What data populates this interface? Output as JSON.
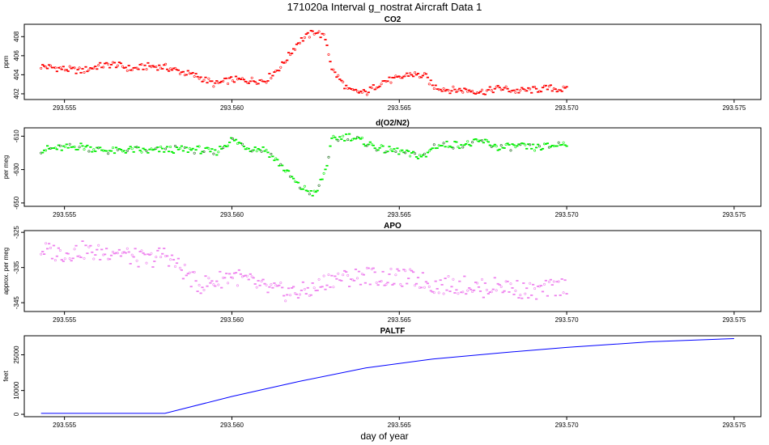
{
  "figure": {
    "title": "171020a   Interval g_nostrat Aircraft Data 1",
    "xlabel": "day of year"
  },
  "chart_data": [
    {
      "type": "scatter",
      "title": "CO2",
      "ylabel": "ppm",
      "color": "#ff0000",
      "xlim": [
        293.5538,
        293.5758
      ],
      "ylim": [
        401.4,
        409.3
      ],
      "xticks": [
        293.555,
        293.56,
        293.565,
        293.57,
        293.575
      ],
      "xtick_labels": [
        "293.555",
        "293.560",
        "293.565",
        "293.570",
        "293.575"
      ],
      "yticks": [
        402,
        404,
        406,
        408
      ],
      "ytick_labels": [
        "402",
        "404",
        "406",
        "408"
      ],
      "series": [
        {
          "name": "CO2",
          "x": [
            293.5543,
            293.555,
            293.5555,
            293.556,
            293.5565,
            293.557,
            293.5575,
            293.558,
            293.559,
            293.5595,
            293.56,
            293.5605,
            293.561,
            293.5615,
            293.562,
            293.5625,
            293.5628,
            293.563,
            293.5635,
            293.564,
            293.5645,
            293.565,
            293.5653,
            293.5658,
            293.566,
            293.5665,
            293.567,
            293.5675,
            293.568,
            293.5685,
            293.569,
            293.5695,
            293.57
          ],
          "y": [
            404.9,
            404.6,
            404.4,
            404.9,
            405.1,
            404.6,
            404.9,
            404.8,
            403.8,
            403.0,
            403.5,
            403.4,
            403.4,
            405.0,
            407.5,
            408.6,
            407.8,
            404.5,
            402.3,
            402.1,
            403.3,
            403.6,
            404.1,
            403.8,
            402.8,
            402.4,
            402.4,
            402.2,
            402.6,
            402.3,
            402.4,
            402.6,
            402.4
          ]
        }
      ]
    },
    {
      "type": "scatter",
      "title": "d(O2/N2)",
      "ylabel": "per meg",
      "color": "#00ee00",
      "xlim": [
        293.5538,
        293.5758
      ],
      "ylim": [
        -652,
        -605
      ],
      "xticks": [
        293.555,
        293.56,
        293.565,
        293.57,
        293.575
      ],
      "xtick_labels": [
        "293.555",
        "293.560",
        "293.565",
        "293.570",
        "293.575"
      ],
      "yticks": [
        -610,
        -630,
        -650
      ],
      "ytick_labels": [
        "-610",
        "-630",
        "-650"
      ],
      "series": [
        {
          "name": "d(O2/N2)",
          "x": [
            293.5543,
            293.555,
            293.5555,
            293.556,
            293.5565,
            293.557,
            293.5575,
            293.558,
            293.559,
            293.5595,
            293.56,
            293.5605,
            293.561,
            293.5615,
            293.562,
            293.5625,
            293.5628,
            293.563,
            293.5635,
            293.564,
            293.5645,
            293.565,
            293.5653,
            293.5658,
            293.566,
            293.5665,
            293.567,
            293.5675,
            293.568,
            293.5685,
            293.569,
            293.5695,
            293.57
          ],
          "y": [
            -618,
            -617,
            -616,
            -618,
            -619,
            -618,
            -619,
            -618,
            -618,
            -620,
            -612,
            -617,
            -618,
            -628,
            -640,
            -645,
            -630,
            -612,
            -610,
            -614,
            -618,
            -619,
            -621,
            -622,
            -616,
            -615,
            -615,
            -613,
            -617,
            -616,
            -617,
            -616,
            -614
          ]
        }
      ]
    },
    {
      "type": "scatter",
      "title": "APO",
      "ylabel": "approx. per meg",
      "color": "#ee82ee",
      "xlim": [
        293.5538,
        293.5758
      ],
      "ylim": [
        -347.5,
        -324.5
      ],
      "xticks": [
        293.555,
        293.56,
        293.565,
        293.57,
        293.575
      ],
      "xtick_labels": [
        "293.555",
        "293.560",
        "293.565",
        "293.570",
        "293.575"
      ],
      "yticks": [
        -325,
        -335,
        -345
      ],
      "ytick_labels": [
        "-325",
        "-335",
        "-345"
      ],
      "series": [
        {
          "name": "APO",
          "x": [
            293.5543,
            293.555,
            293.5555,
            293.556,
            293.5565,
            293.557,
            293.5575,
            293.558,
            293.559,
            293.5595,
            293.56,
            293.5605,
            293.561,
            293.5615,
            293.562,
            293.5625,
            293.5628,
            293.563,
            293.5635,
            293.564,
            293.5645,
            293.565,
            293.5653,
            293.5658,
            293.566,
            293.5665,
            293.567,
            293.5675,
            293.568,
            293.5685,
            293.569,
            293.5695,
            293.57
          ],
          "y": [
            -330,
            -331,
            -330,
            -331,
            -330,
            -332,
            -333,
            -331,
            -340,
            -339,
            -337,
            -339,
            -341,
            -342,
            -342,
            -341,
            -339,
            -338,
            -338,
            -337,
            -338,
            -338,
            -338,
            -339,
            -340,
            -340,
            -340,
            -341,
            -340,
            -341,
            -342,
            -341,
            -340
          ]
        }
      ]
    },
    {
      "type": "line",
      "title": "PALTF",
      "ylabel": "feet",
      "color": "#0000ff",
      "xlim": [
        293.5538,
        293.5758
      ],
      "ylim": [
        -1000,
        33000
      ],
      "xticks": [
        293.555,
        293.56,
        293.565,
        293.57,
        293.575
      ],
      "xtick_labels": [
        "293.555",
        "293.560",
        "293.565",
        "293.570",
        "293.575"
      ],
      "yticks": [
        0,
        10000,
        25000
      ],
      "ytick_labels": [
        "0",
        "10000",
        "25000"
      ],
      "series": [
        {
          "name": "PALTF",
          "x": [
            293.5543,
            293.5558,
            293.558,
            293.56,
            293.562,
            293.564,
            293.566,
            293.568,
            293.57,
            293.5725,
            293.575
          ],
          "y": [
            400,
            400,
            400,
            7500,
            13800,
            19500,
            23200,
            25800,
            28100,
            30500,
            31800
          ]
        }
      ]
    }
  ]
}
